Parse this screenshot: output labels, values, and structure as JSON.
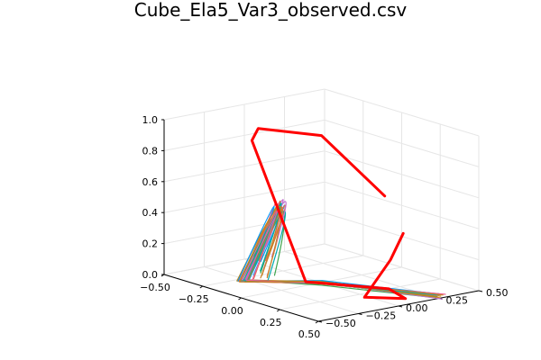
{
  "chart_data": {
    "type": "line3d",
    "title": "Cube_Ela5_Var3_observed.csv",
    "xlabel": "",
    "ylabel": "",
    "zlabel": "",
    "grid": true,
    "legend": "none",
    "axes": {
      "x": {
        "lim": [
          -0.5,
          0.5
        ],
        "ticks": [
          -0.5,
          -0.25,
          0.0,
          0.25,
          0.5
        ],
        "tick_labels": [
          "−0.50",
          "−0.25",
          "0.00",
          "0.25",
          "0.50"
        ]
      },
      "y": {
        "lim": [
          -0.5,
          0.5
        ],
        "ticks": [
          -0.5,
          -0.25,
          0.0,
          0.25,
          0.5
        ],
        "tick_labels": [
          "−0.50",
          "−0.25",
          "0.00",
          "0.25",
          "0.50"
        ]
      },
      "z": {
        "lim": [
          0.0,
          1.0
        ],
        "ticks": [
          0.0,
          0.2,
          0.4,
          0.6,
          0.8,
          1.0
        ],
        "tick_labels": [
          "0.0",
          "0.2",
          "0.4",
          "0.6",
          "0.8",
          "1.0"
        ]
      }
    },
    "colors": {
      "highlight": "#ff0000",
      "palette": [
        "#009af9",
        "#e26f46",
        "#3da44d",
        "#c271d2",
        "#ac8d18",
        "#00a9ad",
        "#ed5e93",
        "#c68225"
      ]
    },
    "highlight_series": {
      "color": "#ff0000",
      "points": [
        [
          0.14,
          0.26,
          0.55
        ],
        [
          0.0,
          0.0,
          0.95
        ],
        [
          -0.15,
          -0.25,
          1.0
        ],
        [
          -0.17,
          -0.27,
          0.92
        ],
        [
          -0.05,
          -0.05,
          0.0
        ],
        [
          0.25,
          0.18,
          0.0
        ],
        [
          0.42,
          0.12,
          0.0
        ],
        [
          0.3,
          -0.02,
          0.0
        ],
        [
          0.24,
          0.2,
          0.18
        ],
        [
          0.27,
          0.25,
          0.35
        ]
      ]
    },
    "trajectory_series": {
      "count": 24,
      "start": [
        -0.05,
        -0.32,
        0.18
      ],
      "top": [
        0.02,
        -0.1,
        0.95
      ],
      "corner": [
        -0.18,
        -0.32,
        0.02
      ],
      "bottom_mid": [
        0.05,
        -0.05,
        0.02
      ],
      "end": [
        0.47,
        0.28,
        0.0
      ]
    }
  }
}
